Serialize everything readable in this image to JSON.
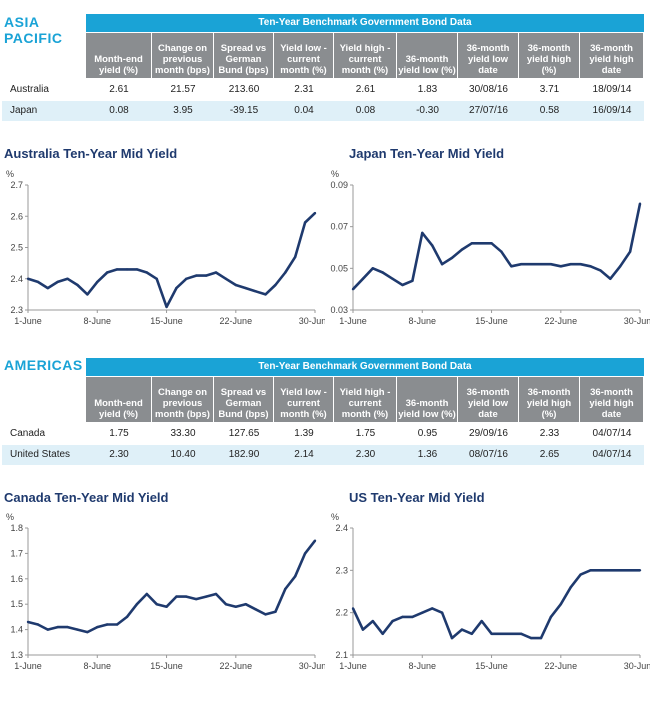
{
  "sections": [
    {
      "region": "ASIA PACIFIC",
      "table": {
        "title": "Ten-Year Benchmark Government Bond Data",
        "columns": [
          "Month-end yield (%)",
          "Change on previous month (bps)",
          "Spread vs German Bund (bps)",
          "Yield low - current month (%)",
          "Yield high - current month (%)",
          "36-month yield low (%)",
          "36-month yield low date",
          "36-month yield high (%)",
          "36-month yield high date"
        ],
        "rows": [
          {
            "label": "Australia",
            "cells": [
              "2.61",
              "21.57",
              "213.60",
              "2.31",
              "2.61",
              "1.83",
              "30/08/16",
              "3.71",
              "18/09/14"
            ]
          },
          {
            "label": "Japan",
            "cells": [
              "0.08",
              "3.95",
              "-39.15",
              "0.04",
              "0.08",
              "-0.30",
              "27/07/16",
              "0.58",
              "16/09/14"
            ]
          }
        ]
      }
    },
    {
      "region": "AMERICAS",
      "table": {
        "title": "Ten-Year Benchmark Government Bond Data",
        "columns": [
          "Month-end yield (%)",
          "Change on previous month (bps)",
          "Spread vs German Bund (bps)",
          "Yield low - current month (%)",
          "Yield high - current month (%)",
          "36-month yield low (%)",
          "36-month yield low date",
          "36-month yield high (%)",
          "36-month yield high date"
        ],
        "rows": [
          {
            "label": "Canada",
            "cells": [
              "1.75",
              "33.30",
              "127.65",
              "1.39",
              "1.75",
              "0.95",
              "29/09/16",
              "2.33",
              "04/07/14"
            ]
          },
          {
            "label": "United States",
            "cells": [
              "2.30",
              "10.40",
              "182.90",
              "2.14",
              "2.30",
              "1.36",
              "08/07/16",
              "2.65",
              "04/07/14"
            ]
          }
        ]
      }
    }
  ],
  "colors": {
    "accent": "#1aa3d6",
    "header_gray": "#8a8d90",
    "line": "#1f3a6e",
    "row_alt": "#dff0f8"
  },
  "chart_data": [
    {
      "type": "line",
      "title": "Australia Ten-Year Mid Yield",
      "ylabel": "%",
      "ylim": [
        2.3,
        2.7
      ],
      "yticks": [
        "2.7",
        "2.6",
        "2.5",
        "2.4",
        "2.3"
      ],
      "xticks": [
        "1-June",
        "8-June",
        "15-June",
        "22-June",
        "30-June"
      ],
      "x": [
        "1-Jun",
        "2-Jun",
        "3-Jun",
        "4-Jun",
        "5-Jun",
        "6-Jun",
        "7-Jun",
        "8-Jun",
        "9-Jun",
        "10-Jun",
        "11-Jun",
        "12-Jun",
        "13-Jun",
        "14-Jun",
        "15-Jun",
        "16-Jun",
        "17-Jun",
        "18-Jun",
        "19-Jun",
        "20-Jun",
        "21-Jun",
        "22-Jun",
        "23-Jun",
        "24-Jun",
        "25-Jun",
        "26-Jun",
        "27-Jun",
        "28-Jun",
        "29-Jun",
        "30-Jun"
      ],
      "values": [
        2.4,
        2.39,
        2.37,
        2.39,
        2.4,
        2.38,
        2.35,
        2.39,
        2.42,
        2.43,
        2.43,
        2.43,
        2.42,
        2.4,
        2.31,
        2.37,
        2.4,
        2.41,
        2.41,
        2.42,
        2.4,
        2.38,
        2.37,
        2.36,
        2.35,
        2.38,
        2.42,
        2.47,
        2.58,
        2.61
      ]
    },
    {
      "type": "line",
      "title": "Japan Ten-Year Mid Yield",
      "ylabel": "%",
      "ylim": [
        0.03,
        0.09
      ],
      "yticks": [
        "0.09",
        "0.07",
        "0.05",
        "0.03"
      ],
      "xticks": [
        "1-June",
        "8-June",
        "15-June",
        "22-June",
        "30-June"
      ],
      "x": [
        "1-Jun",
        "2-Jun",
        "3-Jun",
        "4-Jun",
        "5-Jun",
        "6-Jun",
        "7-Jun",
        "8-Jun",
        "9-Jun",
        "10-Jun",
        "11-Jun",
        "12-Jun",
        "13-Jun",
        "14-Jun",
        "15-Jun",
        "16-Jun",
        "17-Jun",
        "18-Jun",
        "19-Jun",
        "20-Jun",
        "21-Jun",
        "22-Jun",
        "23-Jun",
        "24-Jun",
        "25-Jun",
        "26-Jun",
        "27-Jun",
        "28-Jun",
        "29-Jun",
        "30-Jun"
      ],
      "values": [
        0.04,
        0.045,
        0.05,
        0.048,
        0.045,
        0.042,
        0.044,
        0.067,
        0.061,
        0.052,
        0.055,
        0.059,
        0.062,
        0.062,
        0.062,
        0.058,
        0.051,
        0.052,
        0.052,
        0.052,
        0.052,
        0.051,
        0.052,
        0.052,
        0.051,
        0.049,
        0.045,
        0.051,
        0.058,
        0.081
      ]
    },
    {
      "type": "line",
      "title": "Canada Ten-Year Mid Yield",
      "ylabel": "%",
      "ylim": [
        1.3,
        1.8
      ],
      "yticks": [
        "1.8",
        "1.7",
        "1.6",
        "1.5",
        "1.4",
        "1.3"
      ],
      "xticks": [
        "1-June",
        "8-June",
        "15-June",
        "22-June",
        "30-June"
      ],
      "x": [
        "1-Jun",
        "2-Jun",
        "3-Jun",
        "4-Jun",
        "5-Jun",
        "6-Jun",
        "7-Jun",
        "8-Jun",
        "9-Jun",
        "10-Jun",
        "11-Jun",
        "12-Jun",
        "13-Jun",
        "14-Jun",
        "15-Jun",
        "16-Jun",
        "17-Jun",
        "18-Jun",
        "19-Jun",
        "20-Jun",
        "21-Jun",
        "22-Jun",
        "23-Jun",
        "24-Jun",
        "25-Jun",
        "26-Jun",
        "27-Jun",
        "28-Jun",
        "29-Jun",
        "30-Jun"
      ],
      "values": [
        1.43,
        1.42,
        1.4,
        1.41,
        1.41,
        1.4,
        1.39,
        1.41,
        1.42,
        1.42,
        1.45,
        1.5,
        1.54,
        1.5,
        1.49,
        1.53,
        1.53,
        1.52,
        1.53,
        1.54,
        1.5,
        1.49,
        1.5,
        1.48,
        1.46,
        1.47,
        1.56,
        1.61,
        1.7,
        1.75
      ]
    },
    {
      "type": "line",
      "title": "US Ten-Year Mid Yield",
      "ylabel": "%",
      "ylim": [
        2.1,
        2.4
      ],
      "yticks": [
        "2.4",
        "2.3",
        "2.2",
        "2.1"
      ],
      "xticks": [
        "1-June",
        "8-June",
        "15-June",
        "22-June",
        "30-June"
      ],
      "x": [
        "1-Jun",
        "2-Jun",
        "3-Jun",
        "4-Jun",
        "5-Jun",
        "6-Jun",
        "7-Jun",
        "8-Jun",
        "9-Jun",
        "10-Jun",
        "11-Jun",
        "12-Jun",
        "13-Jun",
        "14-Jun",
        "15-Jun",
        "16-Jun",
        "17-Jun",
        "18-Jun",
        "19-Jun",
        "20-Jun",
        "21-Jun",
        "22-Jun",
        "23-Jun",
        "24-Jun",
        "25-Jun",
        "26-Jun",
        "27-Jun",
        "28-Jun",
        "29-Jun",
        "30-Jun"
      ],
      "values": [
        2.21,
        2.16,
        2.18,
        2.15,
        2.18,
        2.19,
        2.19,
        2.2,
        2.21,
        2.2,
        2.14,
        2.16,
        2.15,
        2.18,
        2.15,
        2.15,
        2.15,
        2.15,
        2.14,
        2.14,
        2.19,
        2.22,
        2.26,
        2.29,
        2.3,
        2.3,
        2.3,
        2.3,
        2.3,
        2.3
      ]
    }
  ]
}
